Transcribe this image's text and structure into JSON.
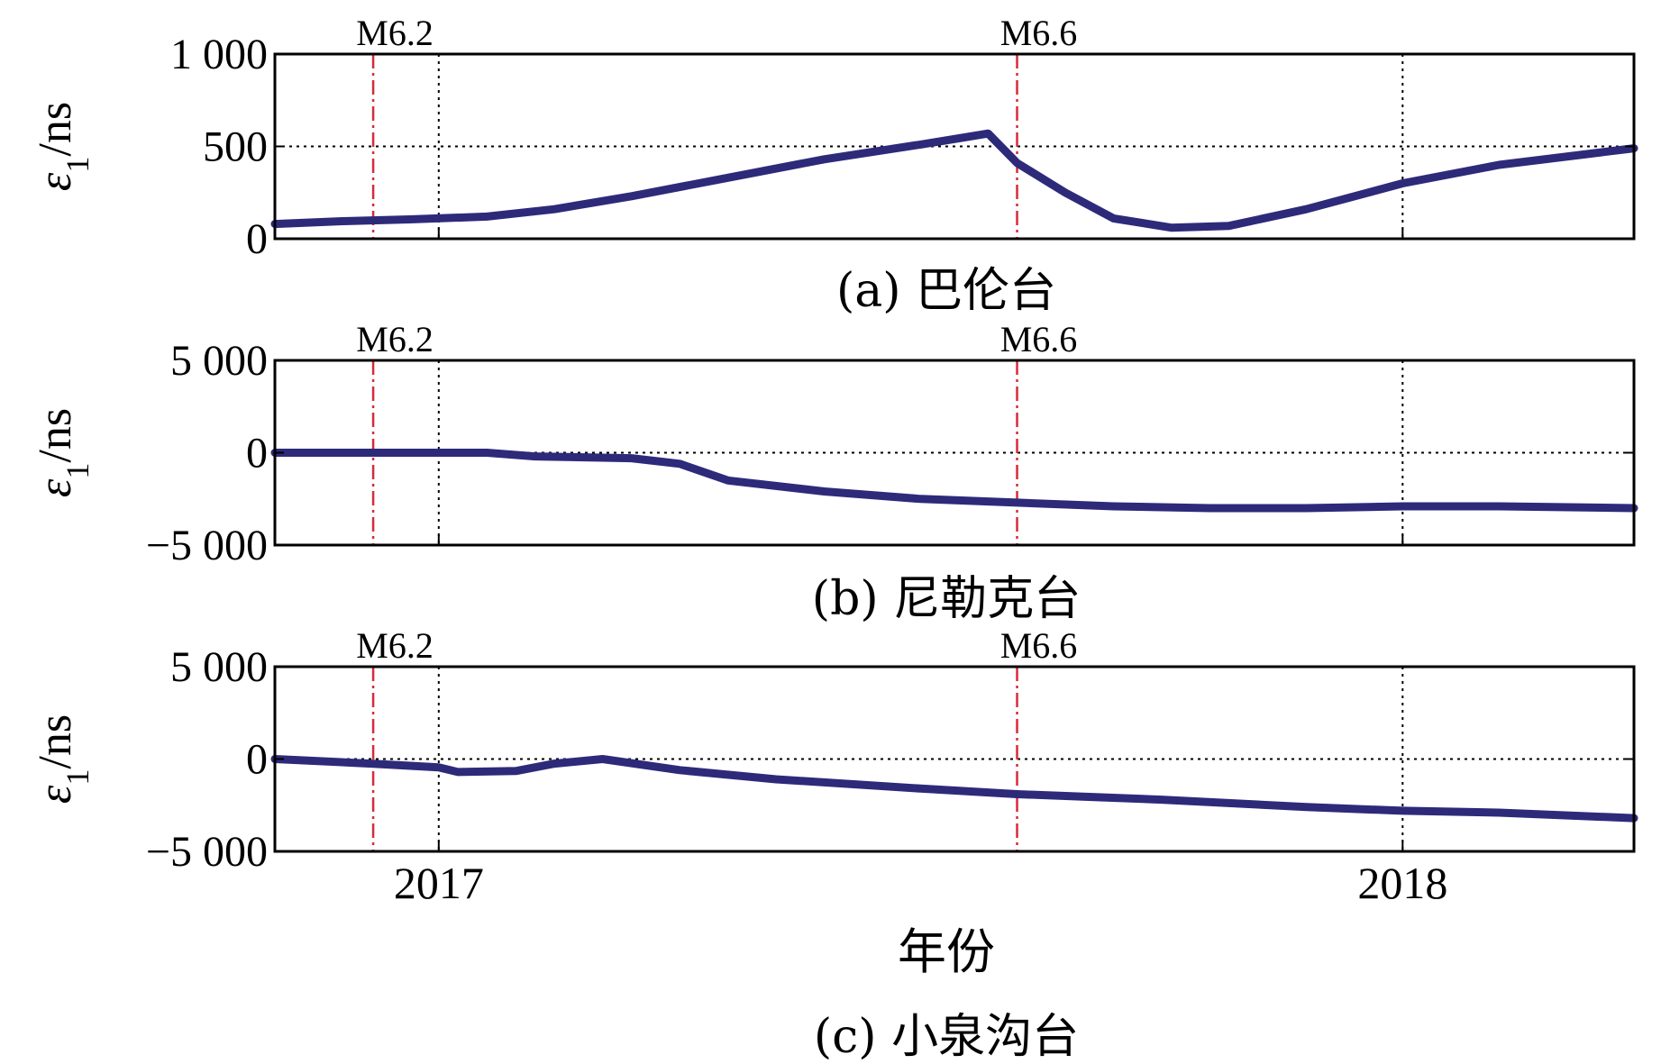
{
  "figure": {
    "xlabel": "年份",
    "line_color": "#2e2a7a",
    "event_color": "#d62b3a"
  },
  "chart_data": [
    {
      "type": "line",
      "caption": "(a) 巴伦台",
      "ylabel_main": "ε",
      "ylabel_sub": "1",
      "ylabel_unit": "/ns",
      "xlim": [
        2016.83,
        2018.24
      ],
      "ylim": [
        0,
        1000
      ],
      "y_ticks": [
        0,
        500,
        1000
      ],
      "y_tick_labels": [
        "0",
        "500",
        "1 000"
      ],
      "x_ticks": [
        2017,
        2018
      ],
      "x_tick_labels": [],
      "h_grid": [
        500
      ],
      "events": [
        {
          "x": 2016.932,
          "label": "M6.2"
        },
        {
          "x": 2017.6,
          "label": "M6.6"
        }
      ],
      "x": [
        2016.83,
        2016.9,
        2016.97,
        2017.05,
        2017.12,
        2017.2,
        2017.3,
        2017.4,
        2017.5,
        2017.57,
        2017.6,
        2017.65,
        2017.7,
        2017.76,
        2017.82,
        2017.9,
        2018.0,
        2018.1,
        2018.24
      ],
      "y": [
        80,
        95,
        105,
        120,
        160,
        230,
        330,
        430,
        510,
        570,
        410,
        250,
        110,
        60,
        70,
        160,
        300,
        400,
        490
      ]
    },
    {
      "type": "line",
      "caption": "(b) 尼勒克台",
      "ylabel_main": "ε",
      "ylabel_sub": "1",
      "ylabel_unit": "/ns",
      "xlim": [
        2016.83,
        2018.24
      ],
      "ylim": [
        -5000,
        5000
      ],
      "y_ticks": [
        -5000,
        0,
        5000
      ],
      "y_tick_labels": [
        "−5 000",
        "0",
        "5 000"
      ],
      "x_ticks": [
        2017,
        2018
      ],
      "x_tick_labels": [],
      "h_grid": [
        0
      ],
      "events": [
        {
          "x": 2016.932,
          "label": "M6.2"
        },
        {
          "x": 2017.6,
          "label": "M6.6"
        }
      ],
      "x": [
        2016.83,
        2016.93,
        2016.97,
        2017.05,
        2017.1,
        2017.2,
        2017.25,
        2017.3,
        2017.4,
        2017.5,
        2017.6,
        2017.7,
        2017.8,
        2017.9,
        2018.0,
        2018.1,
        2018.24
      ],
      "y": [
        0,
        0,
        0,
        0,
        -200,
        -300,
        -600,
        -1500,
        -2100,
        -2500,
        -2700,
        -2900,
        -3000,
        -3000,
        -2900,
        -2900,
        -3000
      ]
    },
    {
      "type": "line",
      "caption": "(c) 小泉沟台",
      "ylabel_main": "ε",
      "ylabel_sub": "1",
      "ylabel_unit": "/ns",
      "xlim": [
        2016.83,
        2018.24
      ],
      "ylim": [
        -5000,
        5000
      ],
      "y_ticks": [
        -5000,
        0,
        5000
      ],
      "y_tick_labels": [
        "−5 000",
        "0",
        "5 000"
      ],
      "x_ticks": [
        2017,
        2018
      ],
      "x_tick_labels": [
        "2017",
        "2018"
      ],
      "h_grid": [
        0
      ],
      "events": [
        {
          "x": 2016.932,
          "label": "M6.2"
        },
        {
          "x": 2017.6,
          "label": "M6.6"
        }
      ],
      "x": [
        2016.83,
        2016.93,
        2017.0,
        2017.02,
        2017.08,
        2017.12,
        2017.17,
        2017.25,
        2017.35,
        2017.5,
        2017.6,
        2017.75,
        2017.9,
        2018.0,
        2018.1,
        2018.24
      ],
      "y": [
        0,
        -250,
        -450,
        -700,
        -650,
        -250,
        0,
        -600,
        -1100,
        -1600,
        -1900,
        -2200,
        -2600,
        -2800,
        -2900,
        -3200
      ]
    }
  ]
}
